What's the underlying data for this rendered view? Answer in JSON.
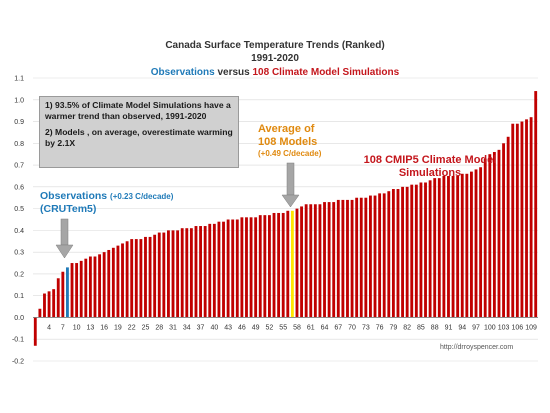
{
  "chart_data": {
    "type": "bar",
    "title_line1": "Canada Surface Temperature Trends (Ranked)",
    "title_line2": "1991-2020",
    "title_line3": {
      "part1": "Observations",
      "part2": " versus ",
      "part3": "108 Climate Model Simulations"
    },
    "ylim": [
      -0.2,
      1.1
    ],
    "y_ticks": [
      "-0.2",
      "-0.1",
      "0.0",
      "0.1",
      "0.2",
      "0.3",
      "0.4",
      "0.5",
      "0.6",
      "0.7",
      "0.8",
      "0.9",
      "1.0",
      "1.1"
    ],
    "x_tick_labels": [
      "4",
      "7",
      "10",
      "13",
      "16",
      "19",
      "22",
      "25",
      "28",
      "31",
      "34",
      "37",
      "40",
      "43",
      "46",
      "49",
      "52",
      "55",
      "58",
      "61",
      "64",
      "67",
      "70",
      "73",
      "76",
      "79",
      "82",
      "85",
      "88",
      "91",
      "94",
      "97",
      "100",
      "103",
      "106",
      "109"
    ],
    "grid": "horizontal",
    "colors": {
      "models": "#c00000",
      "observations": "#1f7ab8",
      "average": "#ffe600",
      "grid": "#d9d9d9",
      "callout_box": "#d0d0d0",
      "arrow": "#a6a6a6"
    },
    "observation_rank": 8,
    "average_rank": 57,
    "values": [
      -0.13,
      0.04,
      0.11,
      0.12,
      0.13,
      0.18,
      0.21,
      0.23,
      0.25,
      0.25,
      0.26,
      0.27,
      0.28,
      0.28,
      0.29,
      0.3,
      0.31,
      0.32,
      0.33,
      0.34,
      0.35,
      0.36,
      0.36,
      0.36,
      0.37,
      0.37,
      0.38,
      0.39,
      0.39,
      0.4,
      0.4,
      0.4,
      0.41,
      0.41,
      0.41,
      0.42,
      0.42,
      0.42,
      0.43,
      0.43,
      0.44,
      0.44,
      0.45,
      0.45,
      0.45,
      0.46,
      0.46,
      0.46,
      0.46,
      0.47,
      0.47,
      0.47,
      0.48,
      0.48,
      0.48,
      0.49,
      0.49,
      0.5,
      0.51,
      0.52,
      0.52,
      0.52,
      0.52,
      0.53,
      0.53,
      0.53,
      0.54,
      0.54,
      0.54,
      0.54,
      0.55,
      0.55,
      0.55,
      0.56,
      0.56,
      0.57,
      0.57,
      0.58,
      0.59,
      0.59,
      0.6,
      0.6,
      0.61,
      0.61,
      0.62,
      0.62,
      0.63,
      0.64,
      0.64,
      0.65,
      0.65,
      0.65,
      0.65,
      0.66,
      0.66,
      0.67,
      0.68,
      0.69,
      0.73,
      0.75,
      0.76,
      0.77,
      0.8,
      0.83,
      0.89,
      0.89,
      0.9,
      0.91,
      0.92,
      1.04
    ]
  },
  "callout": {
    "line1": "1) 93.5% of Climate Model Simulations have a warmer trend than observed, 1991-2020",
    "line2": "2) Models , on average, overestimate warming by 2.1X"
  },
  "annotations": {
    "average_line1": "Average of",
    "average_line2": "108 Models",
    "average_sub": "(+0.49 C/decade)",
    "obs_line1": "Observations ",
    "obs_sub": "(+0.23 C/decade)",
    "obs_line2": "(CRUTem5)",
    "cmip_line1": "108 CMIP5 Climate Model",
    "cmip_line2": "Simulations"
  },
  "watermark": "http://drroyspencer.com"
}
